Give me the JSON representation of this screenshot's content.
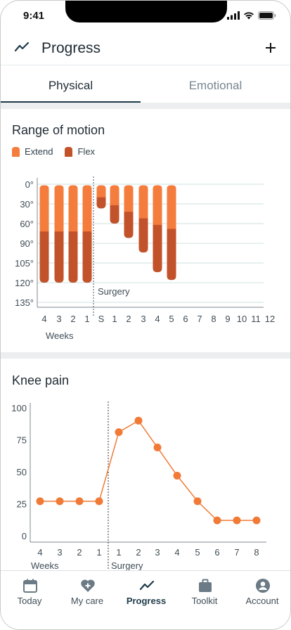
{
  "status_bar": {
    "time": "9:41"
  },
  "header": {
    "title": "Progress"
  },
  "tabs": [
    {
      "label": "Physical",
      "active": true
    },
    {
      "label": "Emotional",
      "active": false
    }
  ],
  "range_of_motion": {
    "title": "Range of motion",
    "legend": [
      {
        "label": "Extend",
        "color": "#f47c3c"
      },
      {
        "label": "Flex",
        "color": "#c2522a"
      }
    ],
    "y_tick_labels": [
      "0°",
      "30°",
      "60°",
      "90°",
      "105°",
      "120°",
      "135°"
    ],
    "x_tick_labels": [
      "4",
      "3",
      "2",
      "1",
      "S",
      "1",
      "2",
      "3",
      "4",
      "5",
      "6",
      "7",
      "8",
      "9",
      "10",
      "11",
      "12"
    ],
    "x_group_label": "Weeks",
    "surgery_label": "Surgery"
  },
  "knee_pain": {
    "title": "Knee pain",
    "y_tick_labels": [
      "100",
      "75",
      "50",
      "25",
      "0"
    ],
    "x_tick_labels": [
      "4",
      "3",
      "2",
      "1",
      "1",
      "2",
      "3",
      "4",
      "5",
      "6",
      "7",
      "8"
    ],
    "x_group_label": "Weeks",
    "surgery_label": "Surgery"
  },
  "chart_data": [
    {
      "type": "bar",
      "title": "Range of motion",
      "ytick_labels": [
        "0°",
        "30°",
        "60°",
        "90°",
        "105°",
        "120°",
        "135°"
      ],
      "categories": [
        "4",
        "3",
        "2",
        "1",
        "S",
        "1",
        "2",
        "3",
        "4",
        "5",
        "6",
        "7",
        "8",
        "9",
        "10",
        "11",
        "12"
      ],
      "series": [
        {
          "name": "Extend",
          "color": "#f47c3c",
          "values": [
            72,
            72,
            72,
            72,
            20,
            32,
            42,
            52,
            62,
            68,
            null,
            null,
            null,
            null,
            null,
            null,
            null
          ]
        },
        {
          "name": "Flex",
          "color": "#c2522a",
          "values": [
            120,
            120,
            120,
            120,
            37,
            60,
            82,
            97,
            112,
            118,
            null,
            null,
            null,
            null,
            null,
            null,
            null
          ]
        }
      ],
      "annotations": [
        "Surgery"
      ],
      "legend": "top-left",
      "grid": true
    },
    {
      "type": "line",
      "title": "Knee pain",
      "x": [
        "4",
        "3",
        "2",
        "1",
        "1",
        "2",
        "3",
        "4",
        "5",
        "6",
        "7",
        "8"
      ],
      "values": [
        27,
        27,
        27,
        27,
        81,
        90,
        69,
        47,
        27,
        12,
        12,
        12
      ],
      "ylim": [
        0,
        100
      ],
      "ytick_labels": [
        "100",
        "75",
        "50",
        "25",
        "0"
      ],
      "color": "#f07a36",
      "annotations": [
        "Surgery"
      ],
      "grid": false
    }
  ],
  "bottom_nav": [
    {
      "label": "Today",
      "icon": "calendar-icon",
      "active": false
    },
    {
      "label": "My care",
      "icon": "heart-plus-icon",
      "active": false
    },
    {
      "label": "Progress",
      "icon": "trend-icon",
      "active": true
    },
    {
      "label": "Toolkit",
      "icon": "toolkit-icon",
      "active": false
    },
    {
      "label": "Account",
      "icon": "account-icon",
      "active": false
    }
  ]
}
